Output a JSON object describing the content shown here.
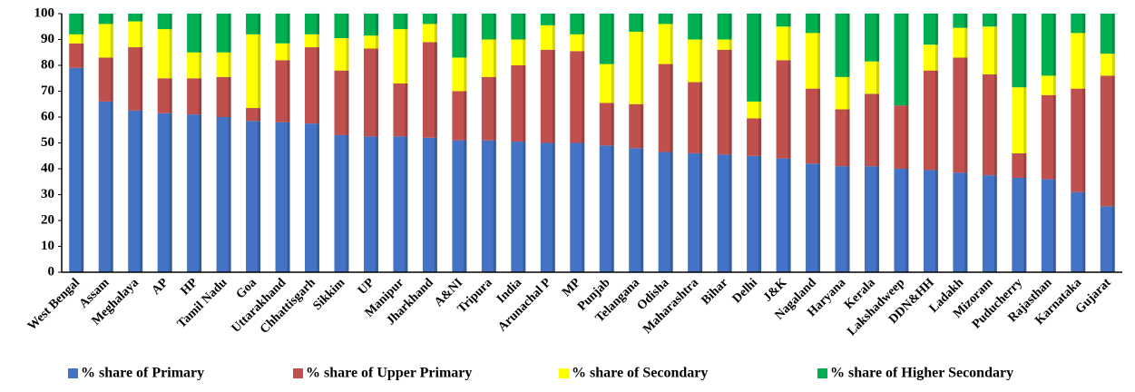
{
  "chart_data": {
    "type": "stacked_bar",
    "categories": [
      "West Bengal",
      "Assam",
      "Meghalaya",
      "AP",
      "HP",
      "Tamil Nadu",
      "Goa",
      "Uttarakhand",
      "Chhattisgarh",
      "Sikkim",
      "UP",
      "Manipur",
      "Jharkhand",
      "A&NI",
      "Tripura",
      "India",
      "Arunachal P",
      "MP",
      "Punjab",
      "Telangana",
      "Odisha",
      "Maharashtra",
      "Bihar",
      "Delhi",
      "J&K",
      "Nagaland",
      "Haryana",
      "Kerala",
      "Lakshadweep",
      "DDN&HH",
      "Ladakh",
      "Mizoram",
      "Puducherry",
      "Rajasthan",
      "Karnataka",
      "Gujarat"
    ],
    "series": [
      {
        "name": "% share of Primary",
        "color": "#4472c4",
        "values": [
          79,
          66,
          62.5,
          61.5,
          61,
          60,
          58.5,
          58,
          57.5,
          53,
          52.5,
          52.5,
          52,
          51,
          51,
          50.5,
          50,
          50,
          49,
          48,
          46.5,
          46,
          45.5,
          45,
          44,
          42,
          41,
          41,
          40,
          39.5,
          38.5,
          37.5,
          36.5,
          36,
          31,
          25.5
        ]
      },
      {
        "name": "% share of Upper Primary",
        "color": "#c0504d",
        "values": [
          9.5,
          17,
          24.5,
          13.5,
          14,
          15.5,
          5,
          24,
          29.5,
          25,
          34,
          20.5,
          37,
          19,
          24.5,
          29.5,
          36,
          35.5,
          16.5,
          17,
          34,
          27.5,
          40.5,
          14.5,
          38,
          29,
          22,
          28,
          24.5,
          38.5,
          44.5,
          39,
          9.5,
          32.5,
          40,
          50.5
        ]
      },
      {
        "name": "% share of Secondary",
        "color": "#ffff00",
        "values": [
          3.5,
          13,
          10,
          19,
          10,
          9.5,
          28.5,
          6.5,
          5,
          12.5,
          5,
          21,
          7,
          13,
          14.5,
          10,
          9.5,
          6.5,
          15,
          28,
          15.5,
          16.5,
          4,
          6.5,
          13,
          21.5,
          12.5,
          12.5,
          0,
          10,
          11.5,
          18.5,
          25.5,
          7.5,
          21.5,
          8.5
        ]
      },
      {
        "name": "% share of Higher Secondary",
        "color": "#00b050",
        "values": [
          8,
          4,
          3,
          6,
          15,
          15,
          8,
          11.5,
          8,
          9.5,
          8.5,
          6,
          4,
          17,
          10,
          10,
          4.5,
          8,
          19.5,
          7,
          4,
          10,
          10,
          34,
          5,
          7.5,
          24.5,
          18.5,
          35.5,
          12,
          5.5,
          5,
          28.5,
          24,
          7.5,
          15.5
        ]
      }
    ],
    "ylim": [
      0,
      100
    ],
    "yticks": [
      0,
      10,
      20,
      30,
      40,
      50,
      60,
      70,
      80,
      90,
      100
    ],
    "legend": "bottom"
  }
}
